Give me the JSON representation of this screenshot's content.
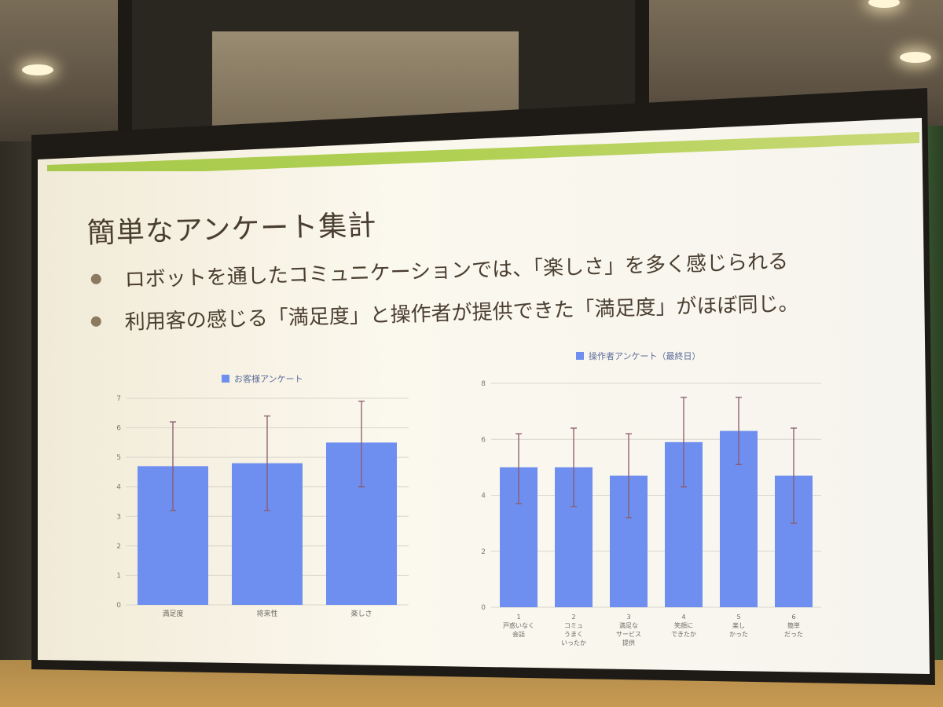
{
  "slide": {
    "title": "簡単なアンケート集計",
    "bullets": [
      "ロボットを通したコミュニケーションでは、「楽しさ」を多く感じられる",
      "利用客の感じる「満足度」と操作者が提供できた「満足度」がほぼ同じ。"
    ]
  },
  "colors": {
    "bar": "#6f8ff0",
    "error_bar": "#8a5a6a",
    "accent_band": "#9ec63b",
    "title_text": "#4a3e30"
  },
  "chart_data": [
    {
      "type": "bar",
      "legend": "お客様アンケート",
      "categories": [
        "満足度",
        "将来性",
        "楽しさ"
      ],
      "values": [
        4.7,
        4.8,
        5.5
      ],
      "error_low": [
        3.2,
        3.2,
        4.0
      ],
      "error_high": [
        6.2,
        6.4,
        6.9
      ],
      "y_ticks": [
        "0",
        "1",
        "2",
        "3",
        "4",
        "5",
        "6",
        "7"
      ],
      "ylim": [
        0,
        7
      ],
      "grid": true,
      "legend_position": "top"
    },
    {
      "type": "bar",
      "legend": "操作者アンケート（最終日）",
      "categories": [
        "1\n戸惑いなく\n会話",
        "2\nコミュ\nうまく\nいったか",
        "3\n満足な\nサービス\n提供",
        "4\n笑顔に\nできたか",
        "5\n楽し\nかった",
        "6\n簡単\nだった"
      ],
      "values": [
        5.0,
        5.0,
        4.7,
        5.9,
        6.3,
        4.7
      ],
      "error_low": [
        3.7,
        3.6,
        3.2,
        4.3,
        5.1,
        3.0
      ],
      "error_high": [
        6.2,
        6.4,
        6.2,
        7.5,
        7.5,
        6.4
      ],
      "y_ticks": [
        "0",
        "2",
        "4",
        "6",
        "8"
      ],
      "ylim": [
        0,
        8
      ],
      "grid": true,
      "legend_position": "top"
    }
  ]
}
